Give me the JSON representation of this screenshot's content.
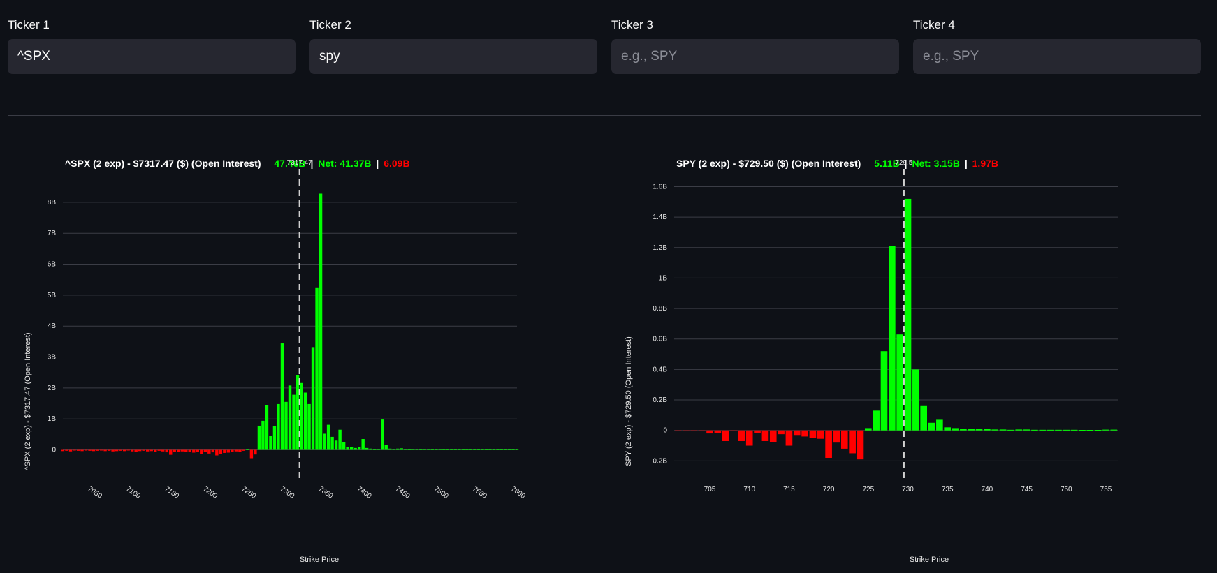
{
  "tickers": [
    {
      "label": "Ticker 1",
      "value": "^SPX",
      "placeholder": "e.g., SPY"
    },
    {
      "label": "Ticker 2",
      "value": "spy",
      "placeholder": "e.g., SPY"
    },
    {
      "label": "Ticker 3",
      "value": "",
      "placeholder": "e.g., SPY"
    },
    {
      "label": "Ticker 4",
      "value": "",
      "placeholder": "e.g., SPY"
    }
  ],
  "colors": {
    "positive": "#00ff00",
    "negative": "#ff0000",
    "background": "#0e1117",
    "input_bg": "#262730"
  },
  "chart_data": [
    {
      "type": "bar",
      "title": "^SPX (2 exp) - $7317.47 ($) (Open Interest)",
      "stats": {
        "call": "47.46B",
        "net": "Net: 41.37B",
        "put": "6.09B"
      },
      "xlabel": "Strike Price",
      "ylabel": "^SPX (2 exp) - $7317.47 (Open Interest)",
      "xlim": [
        7010,
        7600
      ],
      "ylim": [
        -0.8,
        8.9
      ],
      "yticks": [
        0,
        1,
        2,
        3,
        4,
        5,
        6,
        7,
        8
      ],
      "ytick_labels": [
        "0",
        "1B",
        "2B",
        "3B",
        "4B",
        "5B",
        "6B",
        "7B",
        "8B"
      ],
      "xticks": [
        7050,
        7100,
        7150,
        7200,
        7250,
        7300,
        7350,
        7400,
        7450,
        7500,
        7550,
        7600
      ],
      "spot": 7317.47,
      "spot_label": "7317.47",
      "bar_width": 4,
      "x": [
        7010,
        7015,
        7020,
        7025,
        7030,
        7035,
        7040,
        7045,
        7050,
        7055,
        7060,
        7065,
        7070,
        7075,
        7080,
        7085,
        7090,
        7095,
        7100,
        7105,
        7110,
        7115,
        7120,
        7125,
        7130,
        7135,
        7140,
        7145,
        7150,
        7155,
        7160,
        7165,
        7170,
        7175,
        7180,
        7185,
        7190,
        7195,
        7200,
        7205,
        7210,
        7215,
        7220,
        7225,
        7230,
        7235,
        7240,
        7245,
        7250,
        7255,
        7260,
        7265,
        7270,
        7275,
        7280,
        7285,
        7290,
        7295,
        7300,
        7305,
        7310,
        7315,
        7320,
        7325,
        7330,
        7335,
        7340,
        7345,
        7350,
        7355,
        7360,
        7365,
        7370,
        7375,
        7380,
        7385,
        7390,
        7395,
        7400,
        7405,
        7410,
        7415,
        7420,
        7425,
        7430,
        7435,
        7440,
        7445,
        7450,
        7455,
        7460,
        7465,
        7470,
        7475,
        7480,
        7485,
        7490,
        7495,
        7500,
        7505,
        7510,
        7515,
        7520,
        7525,
        7530,
        7535,
        7540,
        7545,
        7550,
        7555,
        7560,
        7565,
        7570,
        7575,
        7580,
        7585,
        7590,
        7595,
        7600
      ],
      "values": [
        -0.04,
        -0.03,
        -0.05,
        -0.02,
        -0.03,
        -0.04,
        -0.02,
        -0.03,
        -0.04,
        -0.03,
        -0.02,
        -0.04,
        -0.03,
        -0.05,
        -0.04,
        -0.03,
        -0.04,
        -0.02,
        -0.05,
        -0.06,
        -0.04,
        -0.03,
        -0.05,
        -0.04,
        -0.06,
        -0.03,
        -0.05,
        -0.08,
        -0.16,
        -0.07,
        -0.06,
        -0.05,
        -0.07,
        -0.06,
        -0.09,
        -0.07,
        -0.14,
        -0.06,
        -0.12,
        -0.08,
        -0.18,
        -0.14,
        -0.1,
        -0.09,
        -0.07,
        -0.05,
        -0.06,
        -0.03,
        0.02,
        -0.27,
        -0.15,
        0.78,
        0.94,
        1.45,
        0.45,
        0.77,
        1.48,
        3.44,
        1.55,
        2.08,
        1.78,
        2.42,
        2.16,
        1.85,
        1.48,
        3.32,
        5.25,
        8.28,
        0.52,
        0.81,
        0.42,
        0.3,
        0.65,
        0.25,
        0.09,
        0.1,
        0.06,
        0.08,
        0.35,
        0.06,
        0.04,
        0.02,
        0.03,
        0.98,
        0.17,
        0.04,
        0.03,
        0.04,
        0.05,
        0.03,
        0.02,
        0.03,
        0.03,
        0.02,
        0.03,
        0.03,
        0.02,
        0.02,
        0.03,
        0.02,
        0.02,
        0.02,
        0.02,
        0.02,
        0.02,
        0.02,
        0.02,
        0.02,
        0.02,
        0.02,
        0.02,
        0.02,
        0.02,
        0.02,
        0.02,
        0.02,
        0.02,
        0.02,
        0.02
      ]
    },
    {
      "type": "bar",
      "title": "SPY (2 exp) - $729.50 ($) (Open Interest)",
      "stats": {
        "call": "5.11B",
        "net": "Net: 3.15B",
        "put": "1.97B"
      },
      "xlabel": "Strike Price",
      "ylabel": "SPY (2 exp) - $729.50 (Open Interest)",
      "xlim": [
        700.5,
        756.5
      ],
      "ylim": [
        -0.29,
        1.68
      ],
      "yticks": [
        -0.2,
        0,
        0.2,
        0.4,
        0.6,
        0.8,
        1.0,
        1.2,
        1.4,
        1.6
      ],
      "ytick_labels": [
        "-0.2B",
        "0",
        "0.2B",
        "0.4B",
        "0.6B",
        "0.8B",
        "1B",
        "1.2B",
        "1.4B",
        "1.6B"
      ],
      "xticks": [
        705,
        710,
        715,
        720,
        725,
        730,
        735,
        740,
        745,
        750,
        755
      ],
      "spot": 729.5,
      "spot_label": "729.5",
      "bar_width": 0.85,
      "x": [
        701,
        702,
        703,
        704,
        705,
        706,
        707,
        708,
        709,
        710,
        711,
        712,
        713,
        714,
        715,
        716,
        717,
        718,
        719,
        720,
        721,
        722,
        723,
        724,
        725,
        726,
        727,
        728,
        729,
        730,
        731,
        732,
        733,
        734,
        735,
        736,
        737,
        738,
        739,
        740,
        741,
        742,
        743,
        744,
        745,
        746,
        747,
        748,
        749,
        750,
        751,
        752,
        753,
        754,
        755,
        756
      ],
      "values": [
        -0.005,
        -0.005,
        -0.005,
        -0.005,
        -0.02,
        -0.015,
        -0.07,
        -0.005,
        -0.07,
        -0.1,
        -0.015,
        -0.07,
        -0.075,
        -0.025,
        -0.1,
        -0.03,
        -0.04,
        -0.05,
        -0.055,
        -0.18,
        -0.08,
        -0.12,
        -0.15,
        -0.19,
        0.015,
        0.13,
        0.52,
        1.21,
        0.63,
        1.52,
        0.4,
        0.16,
        0.05,
        0.07,
        0.02,
        0.015,
        0.008,
        0.008,
        0.008,
        0.008,
        0.006,
        0.006,
        0.004,
        0.006,
        0.006,
        0.004,
        0.004,
        0.004,
        0.004,
        0.004,
        0.004,
        0.003,
        0.003,
        0.003,
        0.005,
        0.005
      ]
    }
  ]
}
